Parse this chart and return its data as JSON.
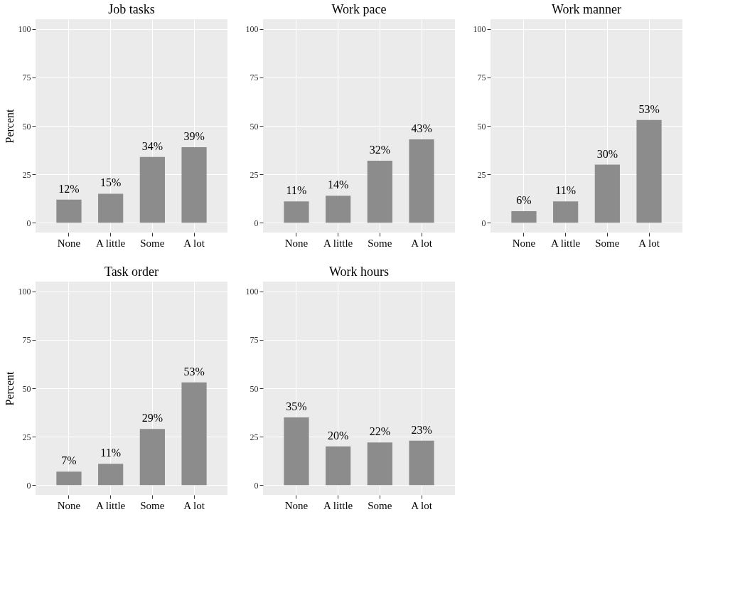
{
  "chart_data": [
    {
      "type": "bar",
      "title": "Job tasks",
      "ylabel": "Percent",
      "categories": [
        "None",
        "A little",
        "Some",
        "A lot"
      ],
      "values": [
        12,
        15,
        34,
        39
      ],
      "value_labels": [
        "12%",
        "15%",
        "34%",
        "39%"
      ],
      "color": "#8c8c8c",
      "ylim": [
        -5,
        105
      ],
      "yticks": [
        0,
        25,
        50,
        75,
        100
      ],
      "grid": true
    },
    {
      "type": "bar",
      "title": "Work pace",
      "categories": [
        "None",
        "A little",
        "Some",
        "A lot"
      ],
      "values": [
        11,
        14,
        32,
        43
      ],
      "value_labels": [
        "11%",
        "14%",
        "32%",
        "43%"
      ],
      "color": "#8c8c8c",
      "ylim": [
        -5,
        105
      ],
      "yticks": [
        0,
        25,
        50,
        75,
        100
      ],
      "grid": true
    },
    {
      "type": "bar",
      "title": "Work manner",
      "categories": [
        "None",
        "A little",
        "Some",
        "A lot"
      ],
      "values": [
        6,
        11,
        30,
        53
      ],
      "value_labels": [
        "6%",
        "11%",
        "30%",
        "53%"
      ],
      "color": "#8c8c8c",
      "ylim": [
        -5,
        105
      ],
      "yticks": [
        0,
        25,
        50,
        75,
        100
      ],
      "grid": true
    },
    {
      "type": "bar",
      "title": "Task order",
      "ylabel": "Percent",
      "categories": [
        "None",
        "A little",
        "Some",
        "A lot"
      ],
      "values": [
        7,
        11,
        29,
        53
      ],
      "value_labels": [
        "7%",
        "11%",
        "29%",
        "53%"
      ],
      "color": "#8c8c8c",
      "ylim": [
        -5,
        105
      ],
      "yticks": [
        0,
        25,
        50,
        75,
        100
      ],
      "grid": true
    },
    {
      "type": "bar",
      "title": "Work hours",
      "categories": [
        "None",
        "A little",
        "Some",
        "A lot"
      ],
      "values": [
        35,
        20,
        22,
        23
      ],
      "value_labels": [
        "35%",
        "20%",
        "22%",
        "23%"
      ],
      "color": "#8c8c8c",
      "ylim": [
        -5,
        105
      ],
      "yticks": [
        0,
        25,
        50,
        75,
        100
      ],
      "grid": true
    }
  ]
}
